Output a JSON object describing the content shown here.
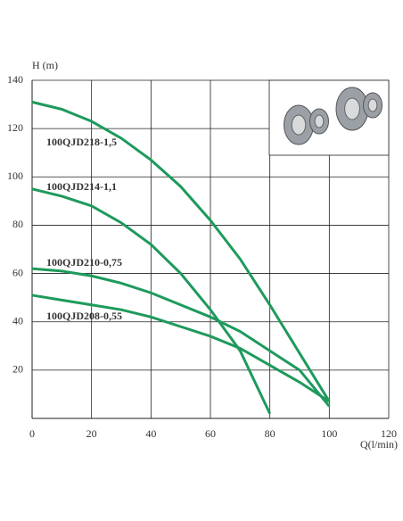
{
  "chart_data": {
    "type": "line",
    "y_label": "H (m)",
    "x_label": "Q(l/min)",
    "x": [
      0,
      10,
      20,
      30,
      40,
      50,
      60,
      70,
      80,
      90,
      100
    ],
    "series": [
      {
        "name": "100QJD218-1,5",
        "color": "#1e9a5c",
        "values": [
          131,
          128,
          123,
          116,
          107,
          96,
          82,
          66,
          47,
          27,
          7
        ]
      },
      {
        "name": "100QJD214-1,1",
        "color": "#1e9a5c",
        "values": [
          95,
          92,
          88,
          81,
          72,
          60,
          45,
          28,
          2,
          null,
          null
        ]
      },
      {
        "name": "100QJD210-0,75",
        "color": "#1e9a5c",
        "values": [
          62,
          61,
          59,
          56,
          52,
          47,
          42,
          36,
          28,
          20,
          5
        ]
      },
      {
        "name": "100QJD208-0,55",
        "color": "#1e9a5c",
        "values": [
          51,
          49,
          47,
          45,
          42,
          38,
          34,
          29,
          22,
          15,
          7
        ]
      }
    ],
    "xlim": [
      0,
      120
    ],
    "xticks": [
      0,
      20,
      40,
      60,
      80,
      100,
      120
    ],
    "ylim": [
      0,
      140
    ],
    "yticks": [
      20,
      40,
      60,
      80,
      100,
      120,
      140
    ],
    "grid": true
  }
}
